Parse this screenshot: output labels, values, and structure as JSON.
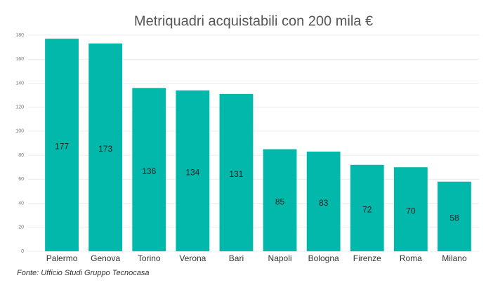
{
  "chart_data": {
    "type": "bar",
    "title": "Metriquadri acquistabili con 200 mila €",
    "categories": [
      "Palermo",
      "Genova",
      "Torino",
      "Verona",
      "Bari",
      "Napoli",
      "Bologna",
      "Firenze",
      "Roma",
      "Milano"
    ],
    "values": [
      177,
      173,
      136,
      134,
      131,
      85,
      83,
      72,
      70,
      58
    ],
    "color": "#01b8aa",
    "ylim": [
      0,
      180
    ],
    "yticks": [
      0,
      20,
      40,
      60,
      80,
      100,
      120,
      140,
      160,
      180
    ],
    "grid": true,
    "note": "Fonte: Ufficio Studi Gruppo Tecnocasa"
  }
}
